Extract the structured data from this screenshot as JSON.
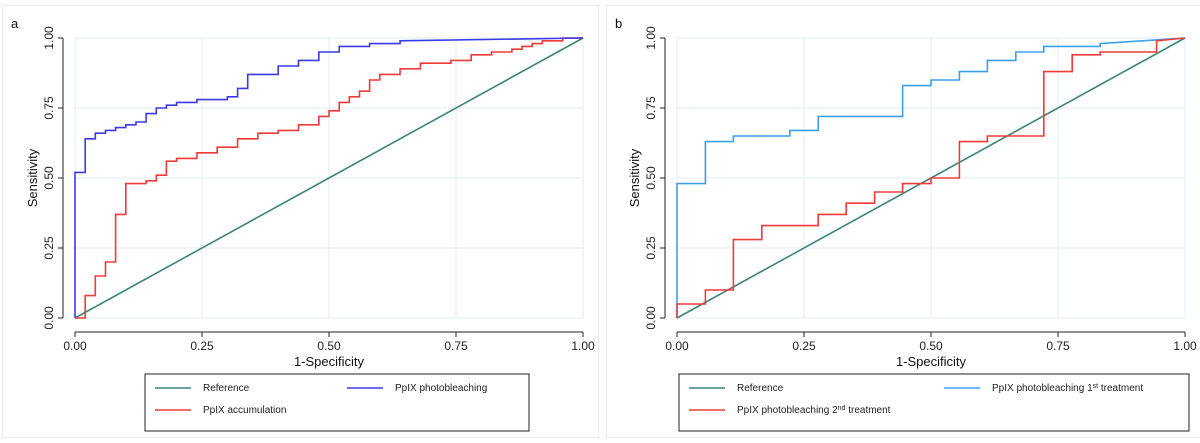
{
  "chart_data": [
    {
      "type": "line",
      "panel_label": "a",
      "xlabel": "1-Specificity",
      "ylabel": "Sensitivity",
      "xlim": [
        0,
        1
      ],
      "ylim": [
        0,
        1
      ],
      "xticks": [
        "0.00",
        "0.25",
        "0.50",
        "0.75",
        "1.00"
      ],
      "yticks": [
        "0.00",
        "0.25",
        "0.50",
        "0.75",
        "1.00"
      ],
      "grid": true,
      "legend_position": "bottom",
      "series": [
        {
          "name": "Reference",
          "color": "#3d8579",
          "x": [
            0,
            1
          ],
          "y": [
            0,
            1
          ]
        },
        {
          "name": "PpIX accumulation",
          "color": "#f03a3a",
          "x": [
            0,
            0.02,
            0.02,
            0.04,
            0.04,
            0.06,
            0.06,
            0.08,
            0.08,
            0.1,
            0.1,
            0.14,
            0.14,
            0.16,
            0.16,
            0.18,
            0.18,
            0.2,
            0.2,
            0.24,
            0.24,
            0.28,
            0.28,
            0.32,
            0.32,
            0.36,
            0.36,
            0.4,
            0.4,
            0.44,
            0.44,
            0.48,
            0.48,
            0.5,
            0.5,
            0.52,
            0.52,
            0.54,
            0.54,
            0.56,
            0.56,
            0.58,
            0.58,
            0.6,
            0.6,
            0.64,
            0.64,
            0.68,
            0.68,
            0.74,
            0.74,
            0.78,
            0.78,
            0.82,
            0.82,
            0.86,
            0.86,
            0.88,
            0.88,
            0.9,
            0.9,
            0.92,
            0.92,
            0.96,
            0.96,
            1.0
          ],
          "y": [
            0,
            0,
            0.08,
            0.08,
            0.15,
            0.15,
            0.2,
            0.2,
            0.37,
            0.37,
            0.48,
            0.48,
            0.49,
            0.49,
            0.51,
            0.51,
            0.56,
            0.56,
            0.57,
            0.57,
            0.59,
            0.59,
            0.61,
            0.61,
            0.64,
            0.64,
            0.66,
            0.66,
            0.67,
            0.67,
            0.69,
            0.69,
            0.72,
            0.72,
            0.74,
            0.74,
            0.77,
            0.77,
            0.79,
            0.79,
            0.81,
            0.81,
            0.85,
            0.85,
            0.87,
            0.87,
            0.89,
            0.89,
            0.91,
            0.91,
            0.92,
            0.92,
            0.94,
            0.94,
            0.95,
            0.95,
            0.96,
            0.96,
            0.97,
            0.97,
            0.98,
            0.98,
            0.99,
            0.99,
            1.0,
            1.0
          ]
        },
        {
          "name": "PpIX photobleaching",
          "color": "#3a3ae8",
          "x": [
            0,
            0,
            0.02,
            0.02,
            0.04,
            0.04,
            0.06,
            0.06,
            0.08,
            0.08,
            0.1,
            0.1,
            0.12,
            0.12,
            0.14,
            0.14,
            0.16,
            0.16,
            0.18,
            0.18,
            0.2,
            0.2,
            0.24,
            0.24,
            0.3,
            0.3,
            0.32,
            0.32,
            0.34,
            0.34,
            0.4,
            0.4,
            0.44,
            0.44,
            0.48,
            0.48,
            0.52,
            0.52,
            0.58,
            0.58,
            0.64,
            0.64,
            1.0
          ],
          "y": [
            0,
            0.52,
            0.52,
            0.64,
            0.64,
            0.66,
            0.66,
            0.67,
            0.67,
            0.68,
            0.68,
            0.69,
            0.69,
            0.7,
            0.7,
            0.73,
            0.73,
            0.75,
            0.75,
            0.76,
            0.76,
            0.77,
            0.77,
            0.78,
            0.78,
            0.79,
            0.79,
            0.82,
            0.82,
            0.87,
            0.87,
            0.9,
            0.9,
            0.92,
            0.92,
            0.95,
            0.95,
            0.97,
            0.97,
            0.98,
            0.98,
            0.99,
            1.0
          ]
        }
      ]
    },
    {
      "type": "line",
      "panel_label": "b",
      "xlabel": "1-Specificity",
      "ylabel": "Sensitivity",
      "xlim": [
        0,
        1
      ],
      "ylim": [
        0,
        1
      ],
      "xticks": [
        "0.00",
        "0.25",
        "0.50",
        "0.75",
        "1.00"
      ],
      "yticks": [
        "0.00",
        "0.25",
        "0.50",
        "0.75",
        "1.00"
      ],
      "grid": true,
      "legend_position": "bottom",
      "series": [
        {
          "name": "Reference",
          "color": "#3d8579",
          "x": [
            0,
            1
          ],
          "y": [
            0,
            1
          ]
        },
        {
          "name": "PpIX photobleaching 1st treatment",
          "label_main": "PpIX photobleaching 1",
          "label_sup": "st",
          "label_tail": " treatment",
          "color": "#3aa0f0",
          "x": [
            0,
            0,
            0.056,
            0.056,
            0.111,
            0.111,
            0.167,
            0.167,
            0.222,
            0.222,
            0.278,
            0.278,
            0.444,
            0.444,
            0.5,
            0.5,
            0.556,
            0.556,
            0.611,
            0.611,
            0.667,
            0.667,
            0.722,
            0.722,
            0.833,
            0.833,
            1.0
          ],
          "y": [
            0,
            0.48,
            0.48,
            0.63,
            0.63,
            0.65,
            0.65,
            0.65,
            0.65,
            0.67,
            0.67,
            0.72,
            0.72,
            0.83,
            0.83,
            0.85,
            0.85,
            0.88,
            0.88,
            0.92,
            0.92,
            0.95,
            0.95,
            0.97,
            0.97,
            0.98,
            1.0
          ]
        },
        {
          "name": "PpIX photobleaching 2nd treatment",
          "label_main": "PpIX photobleaching 2",
          "label_sup": "nd",
          "label_tail": " treatment",
          "color": "#f03a3a",
          "x": [
            0,
            0,
            0.056,
            0.056,
            0.111,
            0.111,
            0.167,
            0.167,
            0.278,
            0.278,
            0.333,
            0.333,
            0.389,
            0.389,
            0.444,
            0.444,
            0.5,
            0.5,
            0.556,
            0.556,
            0.611,
            0.611,
            0.722,
            0.722,
            0.778,
            0.778,
            0.833,
            0.833,
            0.944,
            0.944,
            1.0
          ],
          "y": [
            0,
            0.05,
            0.05,
            0.1,
            0.1,
            0.28,
            0.28,
            0.33,
            0.33,
            0.37,
            0.37,
            0.41,
            0.41,
            0.45,
            0.45,
            0.48,
            0.48,
            0.5,
            0.5,
            0.63,
            0.63,
            0.65,
            0.65,
            0.88,
            0.88,
            0.94,
            0.94,
            0.95,
            0.95,
            0.99,
            1.0
          ]
        }
      ]
    }
  ]
}
